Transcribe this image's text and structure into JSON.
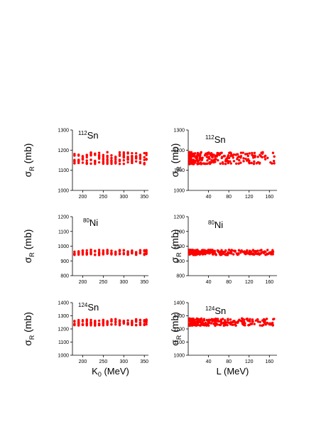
{
  "colors": {
    "points": "#ff0000",
    "axes": "#000000"
  },
  "chart_data": [
    {
      "id": "p1",
      "type": "scatter",
      "isotope_mass": "112",
      "isotope_symbol": "Sn",
      "ylabel_sym": "σ",
      "ylabel_sub": "R",
      "ylabel_unit": " (mb)",
      "xlabel_sym": "",
      "xlabel_sub": "",
      "xlabel_unit": "",
      "xlim": [
        175,
        360
      ],
      "ylim": [
        1000,
        1300
      ],
      "xticks": [
        200,
        250,
        300,
        350
      ],
      "yticks": [
        1000,
        1100,
        1200,
        1300
      ],
      "x_mode": "grid",
      "x_values": [
        180,
        190,
        200,
        210,
        220,
        230,
        240,
        250,
        260,
        270,
        280,
        290,
        300,
        310,
        320,
        330,
        340,
        350,
        355
      ],
      "y_min": 1130,
      "y_max": 1190,
      "points_per_x": 7,
      "seed": 11
    },
    {
      "id": "p2",
      "type": "scatter",
      "isotope_mass": "112",
      "isotope_symbol": "Sn",
      "ylabel_sym": "σ",
      "ylabel_sub": "R",
      "ylabel_unit": " (mb)",
      "xlabel_sym": "",
      "xlabel_sub": "",
      "xlabel_unit": "",
      "xlim": [
        0,
        175
      ],
      "ylim": [
        1000,
        1300
      ],
      "xticks": [
        40,
        80,
        120,
        160
      ],
      "yticks": [
        1000,
        1100,
        1200,
        1300
      ],
      "x_mode": "spread",
      "n_points": 240,
      "y_min": 1130,
      "y_max": 1190,
      "seed": 23
    },
    {
      "id": "p3",
      "type": "scatter",
      "isotope_mass": "80",
      "isotope_symbol": "Ni",
      "ylabel_sym": "σ",
      "ylabel_sub": "R",
      "ylabel_unit": " (mb)",
      "xlabel_sym": "",
      "xlabel_sub": "",
      "xlabel_unit": "",
      "xlim": [
        175,
        360
      ],
      "ylim": [
        800,
        1200
      ],
      "xticks": [
        200,
        250,
        300,
        350
      ],
      "yticks": [
        800,
        900,
        1000,
        1100,
        1200
      ],
      "x_mode": "grid",
      "x_values": [
        180,
        190,
        200,
        210,
        220,
        230,
        240,
        250,
        260,
        270,
        280,
        290,
        300,
        310,
        320,
        330,
        340,
        350,
        355
      ],
      "y_min": 940,
      "y_max": 975,
      "points_per_x": 6,
      "seed": 37
    },
    {
      "id": "p4",
      "type": "scatter",
      "isotope_mass": "80",
      "isotope_symbol": "Ni",
      "ylabel_sym": "σ",
      "ylabel_sub": "R",
      "ylabel_unit": " (mb)",
      "xlabel_sym": "",
      "xlabel_sub": "",
      "xlabel_unit": "",
      "xlim": [
        0,
        175
      ],
      "ylim": [
        800,
        1200
      ],
      "xticks": [
        40,
        80,
        120,
        160
      ],
      "yticks": [
        800,
        900,
        1000,
        1100,
        1200
      ],
      "x_mode": "spread",
      "n_points": 240,
      "y_min": 940,
      "y_max": 975,
      "seed": 41
    },
    {
      "id": "p5",
      "type": "scatter",
      "isotope_mass": "124",
      "isotope_symbol": "Sn",
      "ylabel_sym": "σ",
      "ylabel_sub": "R",
      "ylabel_unit": " (mb)",
      "xlabel_sym": "K",
      "xlabel_sub": "0",
      "xlabel_unit": " (MeV)",
      "xlim": [
        175,
        360
      ],
      "ylim": [
        1000,
        1400
      ],
      "xticks": [
        200,
        250,
        300,
        350
      ],
      "yticks": [
        1000,
        1100,
        1200,
        1300,
        1400
      ],
      "x_mode": "grid",
      "x_values": [
        180,
        190,
        200,
        210,
        220,
        230,
        240,
        250,
        260,
        270,
        280,
        290,
        300,
        310,
        320,
        330,
        340,
        350,
        355
      ],
      "y_min": 1225,
      "y_max": 1275,
      "points_per_x": 7,
      "seed": 53
    },
    {
      "id": "p6",
      "type": "scatter",
      "isotope_mass": "124",
      "isotope_symbol": "Sn",
      "ylabel_sym": "σ",
      "ylabel_sub": "R",
      "ylabel_unit": " (mb)",
      "xlabel_sym": "L",
      "xlabel_sub": "",
      "xlabel_unit": " (MeV)",
      "xlim": [
        0,
        175
      ],
      "ylim": [
        1000,
        1400
      ],
      "xticks": [
        40,
        80,
        120,
        160
      ],
      "yticks": [
        1000,
        1100,
        1200,
        1300,
        1400
      ],
      "x_mode": "spread",
      "n_points": 240,
      "y_min": 1225,
      "y_max": 1280,
      "seed": 67
    }
  ]
}
